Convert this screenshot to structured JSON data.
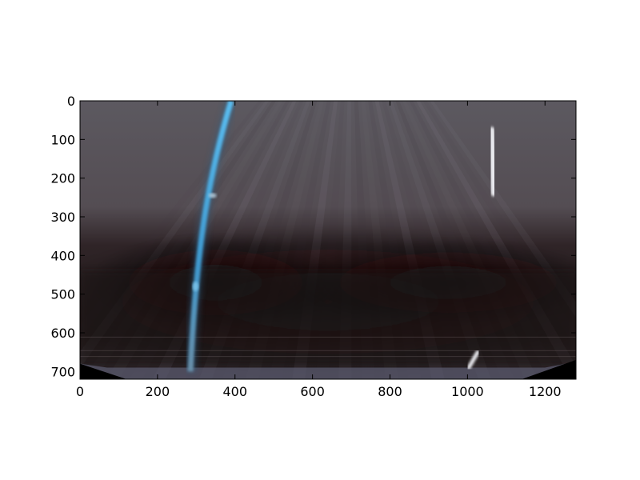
{
  "chart_data": {
    "type": "image",
    "title": "",
    "xlabel": "",
    "ylabel": "",
    "xlim": [
      0,
      1280
    ],
    "ylim": [
      720,
      0
    ],
    "x_ticks": [
      0,
      200,
      400,
      600,
      800,
      1000,
      1200
    ],
    "y_ticks": [
      0,
      100,
      200,
      300,
      400,
      500,
      600,
      700
    ],
    "image_content": {
      "description_tag": "bird's-eye warped road image",
      "lane_lines": [
        {
          "name": "left-lane",
          "color": "#4fb0e8",
          "x_top": 375,
          "x_bottom": 285
        },
        {
          "name": "right-lane",
          "color": "#f4f4f4",
          "segments": [
            [
              1045,
              180,
              1085,
              300
            ],
            [
              1010,
              650,
              1020,
              690
            ]
          ]
        }
      ]
    }
  },
  "colors": {
    "sky": "#5e5960",
    "road": "#2a1f1f",
    "frame": "#000000",
    "lane_blue": "#4fb0e8",
    "lane_white": "#f4f4f4"
  }
}
